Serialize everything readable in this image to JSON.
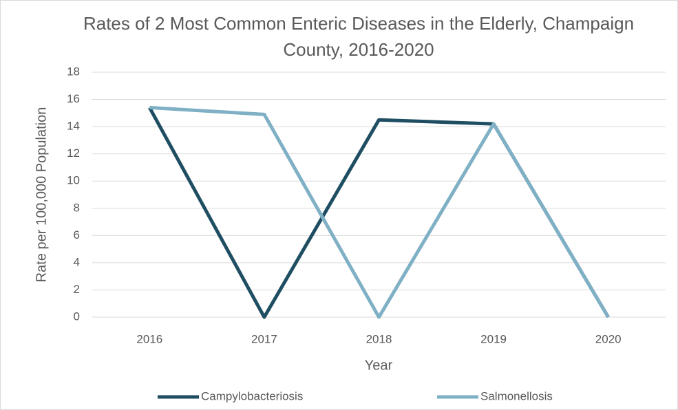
{
  "chart_data": {
    "type": "line",
    "title": "Rates of 2 Most Common Enteric Diseases in the Elderly, Champaign County, 2016-2020",
    "x_label": "Year",
    "y_label": "Rate per 100,000 Population",
    "categories": [
      "2016",
      "2017",
      "2018",
      "2019",
      "2020"
    ],
    "series": [
      {
        "name": "Campylobacteriosis",
        "color": "#1f4e63",
        "values": [
          15.4,
          0,
          14.5,
          14.2,
          0
        ]
      },
      {
        "name": "Salmonellosis",
        "color": "#7fb0c5",
        "values": [
          15.4,
          14.9,
          0,
          14.2,
          0
        ]
      }
    ],
    "ylim": [
      0,
      18
    ],
    "yticks": [
      0,
      2,
      4,
      6,
      8,
      10,
      12,
      14,
      16,
      18
    ],
    "grid": true,
    "legend": "bottom"
  }
}
